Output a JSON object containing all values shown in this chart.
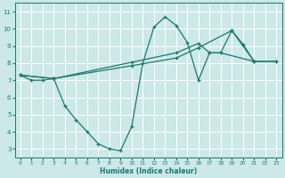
{
  "line1_x": [
    0,
    1,
    2,
    3,
    4,
    5,
    6,
    7,
    8,
    9,
    10,
    11,
    12,
    13,
    14,
    15,
    16,
    17,
    18,
    19,
    20,
    21
  ],
  "line1_y": [
    7.3,
    7.0,
    7.0,
    7.1,
    5.5,
    4.7,
    4.0,
    3.3,
    3.0,
    2.9,
    4.3,
    8.0,
    10.1,
    10.7,
    10.2,
    9.2,
    7.0,
    8.6,
    8.6,
    9.9,
    9.1,
    8.1
  ],
  "line2_x": [
    0,
    3,
    10,
    14,
    16,
    17,
    18,
    21,
    23
  ],
  "line2_y": [
    7.3,
    7.1,
    8.05,
    8.6,
    9.15,
    8.6,
    8.6,
    8.1,
    8.1
  ],
  "line3_x": [
    0,
    3,
    10,
    14,
    16,
    19,
    21,
    23
  ],
  "line3_y": [
    7.3,
    7.1,
    7.85,
    8.3,
    8.9,
    9.9,
    8.1,
    8.1
  ],
  "color": "#1a7a6e",
  "bg_color": "#cce8e8",
  "grid_color": "#b0d8d8",
  "xlabel": "Humidex (Indice chaleur)",
  "xlim": [
    -0.5,
    23.5
  ],
  "ylim": [
    2.5,
    11.5
  ],
  "xticks": [
    0,
    1,
    2,
    3,
    4,
    5,
    6,
    7,
    8,
    9,
    10,
    11,
    12,
    13,
    14,
    15,
    16,
    17,
    18,
    19,
    20,
    21,
    22,
    23
  ],
  "yticks": [
    3,
    4,
    5,
    6,
    7,
    8,
    9,
    10,
    11
  ]
}
